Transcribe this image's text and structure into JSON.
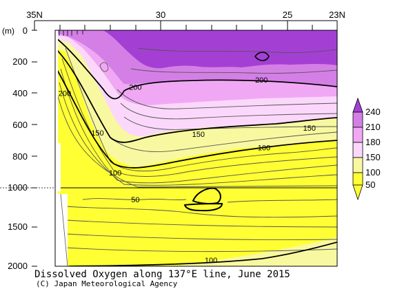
{
  "chart_data": {
    "type": "heatmap",
    "title": "Dissolved Oxygen along 137°E line, June 2015",
    "credit": "(C) Japan Meteorological Agency",
    "x_axis": {
      "range": [
        35,
        23
      ],
      "tick_labels": [
        "35N",
        "30",
        "25",
        "23N"
      ],
      "tick_values": [
        35,
        30,
        25,
        23
      ]
    },
    "y_axis": {
      "unit_label": "(m)",
      "tick_labels": [
        "0",
        "200",
        "400",
        "600",
        "800",
        "1000",
        "1500",
        "2000"
      ],
      "tick_values": [
        0,
        200,
        400,
        600,
        800,
        1000,
        1500,
        2000
      ],
      "upper_range": [
        0,
        1000
      ],
      "lower_range": [
        1000,
        2000
      ],
      "note": "upper 0-1000 m and lower 1000-2000 m panels at different scales"
    },
    "colorbar": {
      "levels": [
        50,
        100,
        150,
        180,
        210,
        240
      ],
      "labels": [
        "240",
        "210",
        "180",
        "150",
        "100",
        "50"
      ],
      "colors": [
        "#ffff33",
        "#f8f8a0",
        "#fbd8fb",
        "#f0a8f4",
        "#d47fe6",
        "#a43fd4"
      ]
    },
    "contour_labels": [
      {
        "text": "200",
        "lat": 33.8,
        "depth": 400
      },
      {
        "text": "200",
        "lat": 31.0,
        "depth": 360
      },
      {
        "text": "200",
        "lat": 26.0,
        "depth": 315
      },
      {
        "text": "150",
        "lat": 32.5,
        "depth": 650
      },
      {
        "text": "150",
        "lat": 28.5,
        "depth": 660
      },
      {
        "text": "150",
        "lat": 24.1,
        "depth": 620
      },
      {
        "text": "100",
        "lat": 31.8,
        "depth": 905
      },
      {
        "text": "100",
        "lat": 25.9,
        "depth": 745
      },
      {
        "text": "50",
        "lat": 31.0,
        "depth": 1150
      },
      {
        "text": "100",
        "lat": 28.0,
        "depth": 1920
      }
    ]
  }
}
